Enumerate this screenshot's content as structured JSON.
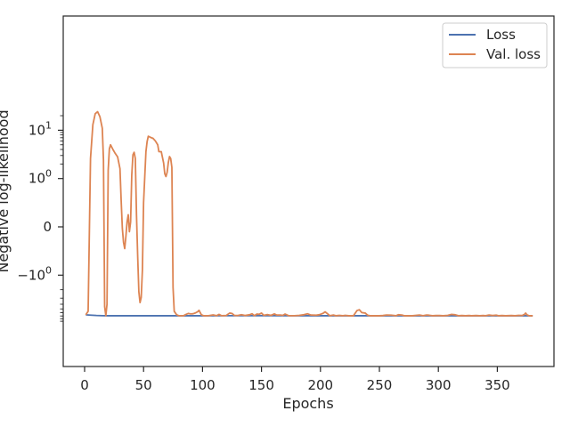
{
  "chart_data": {
    "type": "line",
    "title": "",
    "xlabel": "Epochs",
    "ylabel": "Negative log-likelihood",
    "xlim": [
      -18,
      398
    ],
    "yscale": "symlog",
    "x_ticks": [
      0,
      50,
      100,
      150,
      200,
      250,
      300,
      350
    ],
    "x_tick_labels": [
      "0",
      "50",
      "100",
      "150",
      "200",
      "250",
      "300",
      "350"
    ],
    "y_ticks": [
      10,
      1,
      0,
      -1
    ],
    "y_tick_labels": [
      "10^1",
      "10^0",
      "0",
      "−10^0"
    ],
    "grid": false,
    "legend": {
      "position": "top-right"
    },
    "series": [
      {
        "name": "Loss",
        "color": "#4c72b0",
        "points": [
          [
            1,
            -6.63
          ],
          [
            5,
            -6.72
          ],
          [
            10,
            -6.84
          ],
          [
            15,
            -6.9
          ],
          [
            20,
            -6.92
          ],
          [
            40,
            -6.93
          ],
          [
            80,
            -6.93
          ],
          [
            100,
            -6.92
          ],
          [
            150,
            -6.9
          ],
          [
            200,
            -6.92
          ],
          [
            250,
            -6.92
          ],
          [
            300,
            -6.93
          ],
          [
            350,
            -6.93
          ],
          [
            380,
            -6.93
          ]
        ]
      },
      {
        "name": "Val. loss",
        "color": "#dd8452",
        "points": [
          [
            1,
            -6.63
          ],
          [
            3,
            -5.6
          ],
          [
            5,
            2.6
          ],
          [
            7,
            13
          ],
          [
            9,
            22
          ],
          [
            11,
            24.2
          ],
          [
            13,
            19
          ],
          [
            15,
            11
          ],
          [
            16,
            2.4
          ],
          [
            17,
            -4.5
          ],
          [
            18,
            -6.9
          ],
          [
            19,
            -4
          ],
          [
            20,
            1.5
          ],
          [
            21,
            4.1
          ],
          [
            22,
            5
          ],
          [
            24,
            4
          ],
          [
            26,
            3.3
          ],
          [
            28,
            2.8
          ],
          [
            30,
            1.6
          ],
          [
            31,
            0.55
          ],
          [
            32,
            -0.03
          ],
          [
            33,
            -0.32
          ],
          [
            34,
            -0.45
          ],
          [
            35,
            -0.2
          ],
          [
            36,
            0.1
          ],
          [
            37,
            0.25
          ],
          [
            38,
            -0.1
          ],
          [
            39,
            0.1
          ],
          [
            40,
            1.2
          ],
          [
            41,
            3.1
          ],
          [
            42,
            3.5
          ],
          [
            43,
            2.6
          ],
          [
            44,
            0.25
          ],
          [
            45,
            -0.6
          ],
          [
            46,
            -2.2
          ],
          [
            47,
            -3.7
          ],
          [
            48,
            -2.9
          ],
          [
            49,
            -0.9
          ],
          [
            50,
            0.5
          ],
          [
            52,
            3.6
          ],
          [
            53,
            5.8
          ],
          [
            54,
            7.5
          ],
          [
            56,
            7.1
          ],
          [
            58,
            6.8
          ],
          [
            60,
            6
          ],
          [
            62,
            5
          ],
          [
            63,
            3.6
          ],
          [
            65,
            3.6
          ],
          [
            67,
            2.1
          ],
          [
            68,
            1.25
          ],
          [
            69,
            1.1
          ],
          [
            70,
            1.35
          ],
          [
            71,
            2.15
          ],
          [
            72,
            2.85
          ],
          [
            73,
            2.6
          ],
          [
            74,
            1.7
          ],
          [
            75,
            -1.8
          ],
          [
            76,
            -5.6
          ],
          [
            78,
            -6.6
          ],
          [
            80,
            -6.92
          ],
          [
            84,
            -6.9
          ],
          [
            86,
            -6.5
          ],
          [
            88,
            -6.2
          ],
          [
            90,
            -6.35
          ],
          [
            92,
            -6.3
          ],
          [
            94,
            -6.05
          ],
          [
            96,
            -5.7
          ],
          [
            97,
            -5.35
          ],
          [
            99,
            -6.6
          ],
          [
            101,
            -6.92
          ],
          [
            105,
            -6.9
          ],
          [
            109,
            -6.65
          ],
          [
            112,
            -6.9
          ],
          [
            114,
            -6.5
          ],
          [
            116,
            -6.9
          ],
          [
            120,
            -6.85
          ],
          [
            123,
            -6.1
          ],
          [
            125,
            -6.2
          ],
          [
            127,
            -6.8
          ],
          [
            130,
            -6.85
          ],
          [
            133,
            -6.6
          ],
          [
            136,
            -6.85
          ],
          [
            140,
            -6.6
          ],
          [
            142,
            -6.3
          ],
          [
            144,
            -6.9
          ],
          [
            146,
            -6.4
          ],
          [
            148,
            -6.45
          ],
          [
            150,
            -6.1
          ],
          [
            152,
            -6.8
          ],
          [
            155,
            -6.55
          ],
          [
            158,
            -6.8
          ],
          [
            161,
            -6.35
          ],
          [
            163,
            -6.7
          ],
          [
            166,
            -6.7
          ],
          [
            168,
            -6.8
          ],
          [
            170,
            -6.4
          ],
          [
            173,
            -6.9
          ],
          [
            178,
            -6.9
          ],
          [
            182,
            -6.8
          ],
          [
            186,
            -6.6
          ],
          [
            189,
            -6.3
          ],
          [
            192,
            -6.7
          ],
          [
            196,
            -6.75
          ],
          [
            199,
            -6.6
          ],
          [
            202,
            -6.2
          ],
          [
            204,
            -5.75
          ],
          [
            206,
            -6.3
          ],
          [
            208,
            -6.92
          ],
          [
            211,
            -6.7
          ],
          [
            213,
            -6.92
          ],
          [
            216,
            -6.8
          ],
          [
            219,
            -6.92
          ],
          [
            221,
            -6.8
          ],
          [
            224,
            -6.92
          ],
          [
            228,
            -6.92
          ],
          [
            231,
            -5.4
          ],
          [
            233,
            -5.2
          ],
          [
            235,
            -5.95
          ],
          [
            238,
            -6.1
          ],
          [
            240,
            -6.75
          ],
          [
            242,
            -6.92
          ],
          [
            250,
            -6.92
          ],
          [
            253,
            -6.85
          ],
          [
            256,
            -6.7
          ],
          [
            260,
            -6.72
          ],
          [
            264,
            -6.92
          ],
          [
            266,
            -6.6
          ],
          [
            269,
            -6.7
          ],
          [
            271,
            -6.92
          ],
          [
            278,
            -6.92
          ],
          [
            281,
            -6.8
          ],
          [
            284,
            -6.7
          ],
          [
            287,
            -6.92
          ],
          [
            290,
            -6.7
          ],
          [
            292,
            -6.75
          ],
          [
            295,
            -6.92
          ],
          [
            298,
            -6.85
          ],
          [
            301,
            -6.85
          ],
          [
            304,
            -6.92
          ],
          [
            308,
            -6.8
          ],
          [
            311,
            -6.5
          ],
          [
            314,
            -6.6
          ],
          [
            317,
            -6.92
          ],
          [
            320,
            -6.85
          ],
          [
            323,
            -6.92
          ],
          [
            326,
            -6.85
          ],
          [
            328,
            -6.92
          ],
          [
            332,
            -6.85
          ],
          [
            335,
            -6.92
          ],
          [
            338,
            -6.85
          ],
          [
            340,
            -6.92
          ],
          [
            343,
            -6.7
          ],
          [
            346,
            -6.85
          ],
          [
            349,
            -6.72
          ],
          [
            351,
            -6.92
          ],
          [
            354,
            -6.85
          ],
          [
            357,
            -6.92
          ],
          [
            362,
            -6.85
          ],
          [
            365,
            -6.92
          ],
          [
            368,
            -6.8
          ],
          [
            371,
            -6.85
          ],
          [
            373,
            -6.5
          ],
          [
            374,
            -6.1
          ],
          [
            375,
            -6.6
          ],
          [
            377,
            -6.92
          ],
          [
            380,
            -6.92
          ]
        ]
      }
    ]
  }
}
